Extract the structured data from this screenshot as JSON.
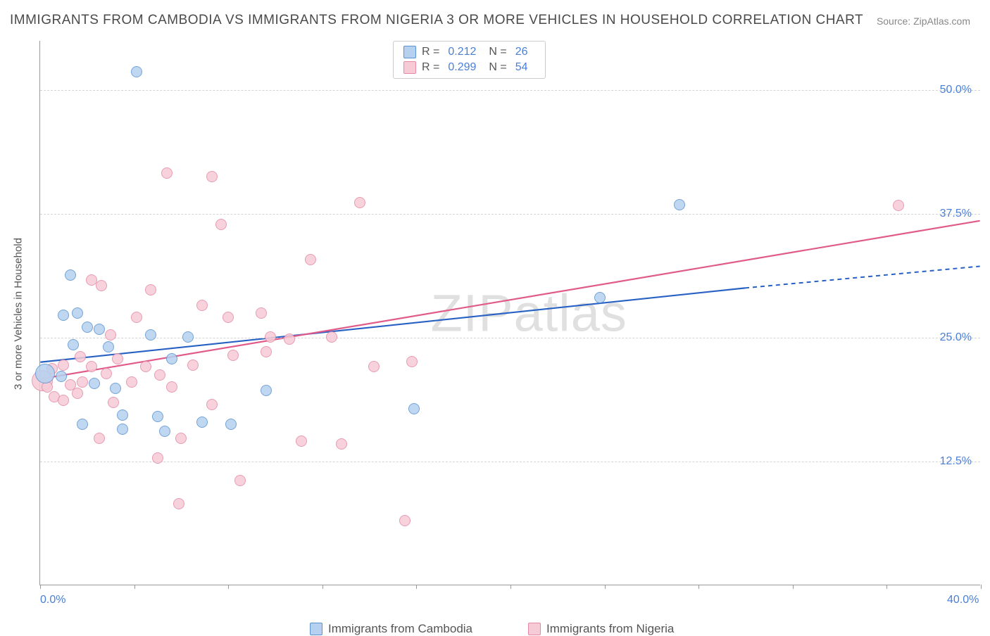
{
  "title": "IMMIGRANTS FROM CAMBODIA VS IMMIGRANTS FROM NIGERIA 3 OR MORE VEHICLES IN HOUSEHOLD CORRELATION CHART",
  "source": {
    "label": "Source:",
    "site": "ZipAtlas.com"
  },
  "ylabel": "3 or more Vehicles in Household",
  "watermark": "ZIPatlas",
  "chart": {
    "type": "scatter",
    "xlim": [
      0,
      40
    ],
    "ylim": [
      0,
      55
    ],
    "xticks": [
      0,
      4,
      8,
      12,
      16,
      20,
      24,
      28,
      32,
      36,
      40
    ],
    "xtick_labels": {
      "0": "0.0%",
      "40": "40.0%"
    },
    "y_gridlines": [
      12.5,
      25.0,
      37.5,
      50.0
    ],
    "ytick_labels": [
      "12.5%",
      "25.0%",
      "37.5%",
      "50.0%"
    ],
    "background_color": "#ffffff",
    "grid_color": "#d4d4d4",
    "axis_color": "#999999",
    "tick_label_color": "#4a7fd6",
    "point_radius": 8,
    "series": [
      {
        "name": "Immigrants from Cambodia",
        "fill": "#b5d1ef",
        "stroke": "#5b93cf",
        "line_color": "#2861c4",
        "R": "0.212",
        "N": "26",
        "trend": {
          "x1": 0,
          "y1": 22.5,
          "x2": 30,
          "y2": 30.0,
          "x2_dash": 40,
          "y2_dash": 32.2
        },
        "points": [
          {
            "x": 0.2,
            "y": 21.3,
            "r": 14
          },
          {
            "x": 4.1,
            "y": 51.8
          },
          {
            "x": 1.3,
            "y": 31.3
          },
          {
            "x": 1.0,
            "y": 27.2
          },
          {
            "x": 1.6,
            "y": 27.4
          },
          {
            "x": 2.0,
            "y": 26.0
          },
          {
            "x": 1.4,
            "y": 24.2
          },
          {
            "x": 2.5,
            "y": 25.8
          },
          {
            "x": 2.9,
            "y": 24.0
          },
          {
            "x": 0.9,
            "y": 21.0
          },
          {
            "x": 2.3,
            "y": 20.3
          },
          {
            "x": 3.2,
            "y": 19.8
          },
          {
            "x": 4.7,
            "y": 25.2
          },
          {
            "x": 5.6,
            "y": 22.8
          },
          {
            "x": 6.3,
            "y": 25.0
          },
          {
            "x": 1.8,
            "y": 16.2
          },
          {
            "x": 3.5,
            "y": 17.1
          },
          {
            "x": 3.5,
            "y": 15.7
          },
          {
            "x": 5.0,
            "y": 17.0
          },
          {
            "x": 5.3,
            "y": 15.5
          },
          {
            "x": 6.9,
            "y": 16.4
          },
          {
            "x": 8.1,
            "y": 16.2
          },
          {
            "x": 9.6,
            "y": 19.6
          },
          {
            "x": 15.9,
            "y": 17.8
          },
          {
            "x": 23.8,
            "y": 29.0
          },
          {
            "x": 27.2,
            "y": 38.4
          }
        ]
      },
      {
        "name": "Immigrants from Nigeria",
        "fill": "#f6cbd6",
        "stroke": "#e48aa4",
        "line_color": "#e05a8a",
        "R": "0.299",
        "N": "54",
        "trend": {
          "x1": 0,
          "y1": 20.8,
          "x2": 40,
          "y2": 36.8,
          "x2_dash": 40,
          "y2_dash": 36.8
        },
        "points": [
          {
            "x": 0.1,
            "y": 20.6,
            "r": 15
          },
          {
            "x": 0.3,
            "y": 20.0
          },
          {
            "x": 0.6,
            "y": 19.0
          },
          {
            "x": 0.5,
            "y": 21.8
          },
          {
            "x": 1.0,
            "y": 18.6
          },
          {
            "x": 1.0,
            "y": 22.2
          },
          {
            "x": 1.3,
            "y": 20.2
          },
          {
            "x": 1.6,
            "y": 19.3
          },
          {
            "x": 1.7,
            "y": 23.0
          },
          {
            "x": 1.8,
            "y": 20.5
          },
          {
            "x": 2.2,
            "y": 22.0
          },
          {
            "x": 2.2,
            "y": 30.8
          },
          {
            "x": 2.6,
            "y": 30.2
          },
          {
            "x": 2.8,
            "y": 21.3
          },
          {
            "x": 2.5,
            "y": 14.8
          },
          {
            "x": 3.0,
            "y": 25.2
          },
          {
            "x": 3.1,
            "y": 18.4
          },
          {
            "x": 3.3,
            "y": 22.8
          },
          {
            "x": 3.9,
            "y": 20.5
          },
          {
            "x": 4.1,
            "y": 27.0
          },
          {
            "x": 4.5,
            "y": 22.0
          },
          {
            "x": 4.7,
            "y": 29.8
          },
          {
            "x": 5.0,
            "y": 12.8
          },
          {
            "x": 5.1,
            "y": 21.2
          },
          {
            "x": 5.4,
            "y": 41.6
          },
          {
            "x": 5.6,
            "y": 20.0
          },
          {
            "x": 5.9,
            "y": 8.2
          },
          {
            "x": 6.0,
            "y": 14.8
          },
          {
            "x": 6.5,
            "y": 22.2
          },
          {
            "x": 6.9,
            "y": 28.2
          },
          {
            "x": 7.3,
            "y": 41.2
          },
          {
            "x": 7.3,
            "y": 18.2
          },
          {
            "x": 7.7,
            "y": 36.4
          },
          {
            "x": 8.0,
            "y": 27.0
          },
          {
            "x": 8.2,
            "y": 23.2
          },
          {
            "x": 8.5,
            "y": 10.5
          },
          {
            "x": 9.4,
            "y": 27.4
          },
          {
            "x": 9.6,
            "y": 23.5
          },
          {
            "x": 9.8,
            "y": 25.0
          },
          {
            "x": 10.6,
            "y": 24.8
          },
          {
            "x": 11.1,
            "y": 14.5
          },
          {
            "x": 11.5,
            "y": 32.8
          },
          {
            "x": 12.4,
            "y": 25.0
          },
          {
            "x": 12.8,
            "y": 14.2
          },
          {
            "x": 13.6,
            "y": 38.6
          },
          {
            "x": 14.2,
            "y": 22.0
          },
          {
            "x": 15.5,
            "y": 6.5
          },
          {
            "x": 15.8,
            "y": 22.5
          },
          {
            "x": 36.5,
            "y": 38.3
          }
        ]
      }
    ]
  },
  "legend_bottom": [
    {
      "label": "Immigrants from Cambodia",
      "fill": "#b5d1ef",
      "stroke": "#5b93cf"
    },
    {
      "label": "Immigrants from Nigeria",
      "fill": "#f6cbd6",
      "stroke": "#e48aa4"
    }
  ]
}
